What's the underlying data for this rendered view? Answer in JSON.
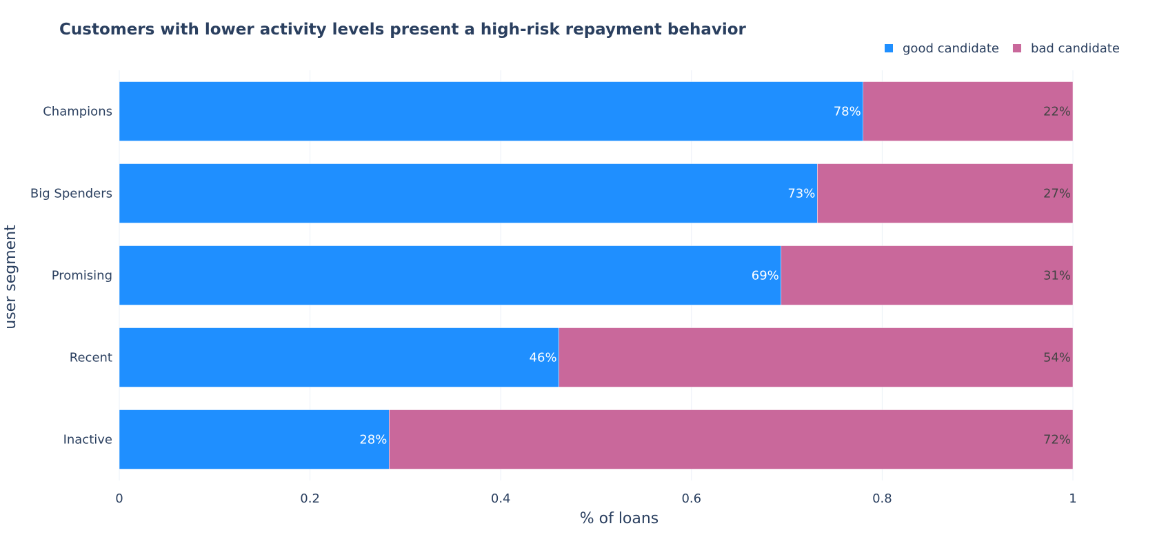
{
  "chart_data": {
    "type": "bar",
    "orientation": "horizontal",
    "barmode": "stack",
    "title": "Customers with lower activity levels present a high-risk repayment behavior",
    "xlabel": "% of loans",
    "ylabel": "user segment",
    "xlim": [
      0,
      1
    ],
    "xticks": [
      0,
      0.2,
      0.4,
      0.6,
      0.8,
      1
    ],
    "xtick_labels": [
      "0",
      "0.2",
      "0.4",
      "0.6",
      "0.8",
      "1"
    ],
    "grid": true,
    "legend": {
      "placement": "top-right",
      "orientation": "horizontal"
    },
    "categories": [
      "Champions",
      "Big Spenders",
      "Promising",
      "Recent",
      "Inactive"
    ],
    "series": [
      {
        "name": "good candidate",
        "color": "#1f8fff",
        "values": [
          0.78,
          0.732,
          0.694,
          0.461,
          0.283
        ],
        "labels": [
          "78%",
          "73%",
          "69%",
          "46%",
          "28%"
        ]
      },
      {
        "name": "bad candidate",
        "color": "#c9689b",
        "values": [
          0.22,
          0.268,
          0.306,
          0.539,
          0.717
        ],
        "labels": [
          "22%",
          "27%",
          "31%",
          "54%",
          "72%"
        ]
      }
    ]
  }
}
